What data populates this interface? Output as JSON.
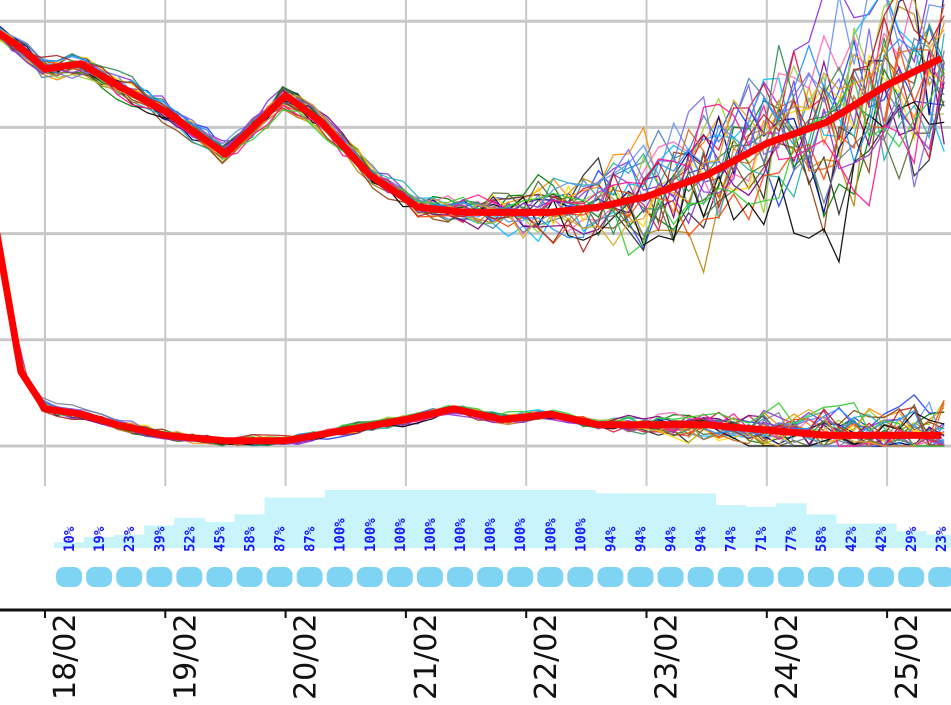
{
  "chart_data": {
    "type": "line",
    "title": "",
    "xlabel": "",
    "ylabel": "",
    "grid": true,
    "x_ticks": [
      "18/02",
      "19/02",
      "20/02",
      "21/02",
      "22/02",
      "23/02",
      "24/02",
      "25/02"
    ],
    "x_range": [
      17.6,
      25.45
    ],
    "y_range": [
      0,
      4.2
    ],
    "probability_row": {
      "x": [
        18.2,
        18.45,
        18.7,
        18.95,
        19.2,
        19.45,
        19.7,
        19.95,
        20.2,
        20.45,
        20.7,
        20.95,
        21.2,
        21.45,
        21.7,
        21.95,
        22.2,
        22.45,
        22.7,
        22.95,
        23.2,
        23.45,
        23.7,
        23.95,
        24.2,
        24.45,
        24.7,
        24.95,
        25.2,
        25.45
      ],
      "labels": [
        "10%",
        "19%",
        "23%",
        "39%",
        "52%",
        "45%",
        "58%",
        "87%",
        "87%",
        "100%",
        "100%",
        "100%",
        "100%",
        "100%",
        "100%",
        "100%",
        "100%",
        "100%",
        "94%",
        "94%",
        "94%",
        "94%",
        "74%",
        "71%",
        "77%",
        "58%",
        "42%",
        "42%",
        "29%",
        "23%"
      ]
    },
    "mean_series": [
      {
        "name": "",
        "color": "#ff0000",
        "x": [
          17.6,
          17.8,
          18.0,
          18.3,
          18.6,
          19.0,
          19.5,
          20.0,
          20.3,
          20.7,
          21.1,
          21.5,
          21.9,
          22.2,
          22.6,
          23.0,
          23.5,
          24.0,
          24.5,
          25.0,
          25.45
        ],
        "y": [
          3.9,
          3.75,
          3.55,
          3.6,
          3.4,
          3.15,
          2.75,
          3.3,
          3.05,
          2.55,
          2.25,
          2.2,
          2.2,
          2.2,
          2.25,
          2.35,
          2.55,
          2.85,
          3.05,
          3.4,
          3.65
        ]
      },
      {
        "name": "",
        "color": "#ff0000",
        "x": [
          17.6,
          17.8,
          18.0,
          18.3,
          18.6,
          19.0,
          19.5,
          20.0,
          20.5,
          21.0,
          21.4,
          21.8,
          22.2,
          22.6,
          23.0,
          23.5,
          24.0,
          24.5,
          25.0,
          25.45
        ],
        "y": [
          2.0,
          0.7,
          0.35,
          0.3,
          0.2,
          0.1,
          0.05,
          0.05,
          0.15,
          0.25,
          0.35,
          0.25,
          0.3,
          0.2,
          0.2,
          0.2,
          0.15,
          0.1,
          0.1,
          0.1
        ]
      }
    ],
    "member_colors": [
      "#1f3cff",
      "#2a2a2a",
      "#8a2be2",
      "#ff8c00",
      "#008000",
      "#00bfff",
      "#b8860b",
      "#dc143c",
      "#4682b4",
      "#ff69b4",
      "#9acd32",
      "#8b4513",
      "#00008b",
      "#ffd700",
      "#20b2aa",
      "#800080",
      "#556b2f",
      "#ff4500",
      "#6495ed",
      "#000000",
      "#7b68ee",
      "#2e8b57",
      "#d2691e",
      "#9932cc",
      "#708090",
      "#ff1493",
      "#1e90ff",
      "#b22222",
      "#32cd32",
      "#daa520"
    ]
  }
}
